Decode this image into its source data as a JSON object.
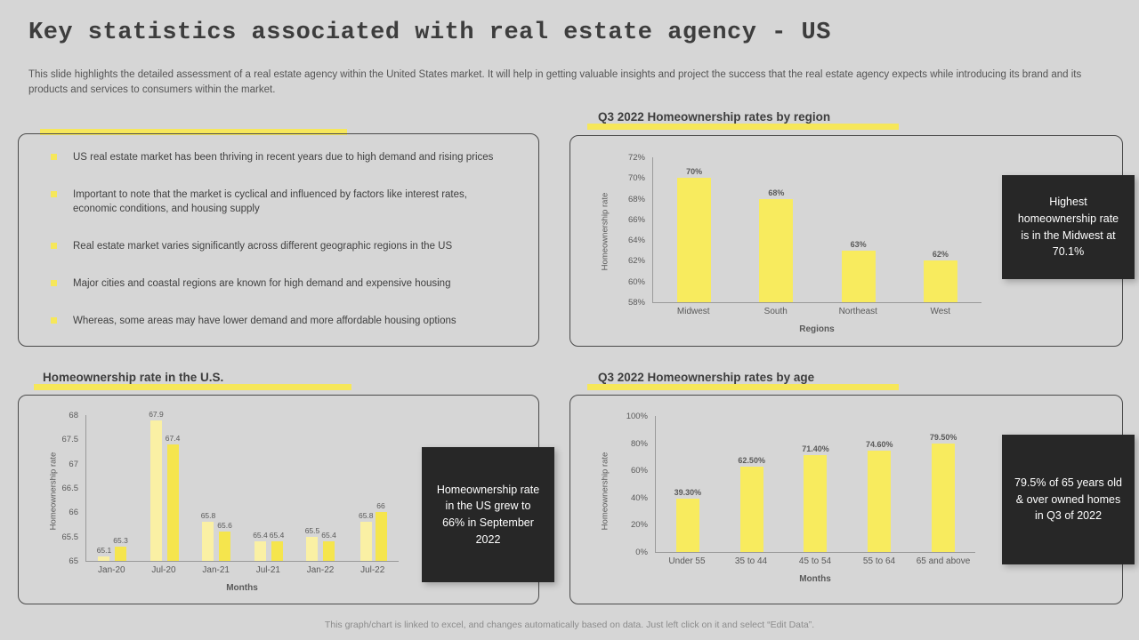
{
  "slide": {
    "title": "Key statistics associated with real estate agency - US",
    "description": "This slide highlights the detailed assessment of a real estate agency within the United States market. It will help in getting valuable insights and project the success that the real estate agency expects while introducing its brand and its products and services to consumers within the market.",
    "footer": "This graph/chart is linked to excel, and changes automatically based on data. Just left click on it and select “Edit Data”."
  },
  "bullets": [
    "US real estate market has been thriving in recent years due to high demand and rising prices",
    "Important to note that the market is cyclical and influenced by factors like interest rates, economic conditions, and housing supply",
    "Real estate market varies significantly across different geographic regions in the US",
    "Major cities and coastal regions are known for high demand and expensive housing",
    "Whereas, some areas may have lower demand and more affordable housing options"
  ],
  "colors": {
    "background": "#d6d6d6",
    "accent_yellow": "#f6e75a",
    "pale_yellow": "#faf0a4",
    "dark_callout": "#272727",
    "text_dark": "#404040",
    "text_muted": "#595959"
  },
  "chart_data": [
    {
      "type": "bar",
      "title": "Q3 2022 Homeownership rates by region",
      "categories": [
        "Midwest",
        "South",
        "Northeast",
        "West"
      ],
      "values": [
        70,
        68,
        63,
        62
      ],
      "labels": [
        "70%",
        "68%",
        "63%",
        "62%"
      ],
      "xlabel": "Regions",
      "ylabel": "Homeownership rate",
      "ylim": [
        58,
        72
      ],
      "yticks": [
        "72%",
        "70%",
        "68%",
        "66%",
        "64%",
        "62%",
        "60%",
        "58%"
      ],
      "grid": false,
      "legend": false,
      "callout": "Highest homeownership rate is in the Midwest at 70.1%"
    },
    {
      "type": "bar",
      "title": "Homeownership rate in the U.S.",
      "categories": [
        "Jan-20",
        "Jul-20",
        "Jan-21",
        "Jul-21",
        "Jan-22",
        "Jul-22"
      ],
      "series": [
        {
          "name": "series1",
          "values": [
            65.1,
            67.9,
            65.8,
            65.4,
            65.5,
            65.8
          ]
        },
        {
          "name": "series2",
          "values": [
            65.3,
            67.4,
            65.6,
            65.4,
            65.4,
            66
          ]
        }
      ],
      "labels": [
        [
          "65.1",
          "65.3"
        ],
        [
          "67.9",
          "67.4"
        ],
        [
          "65.8",
          "65.6"
        ],
        [
          "65.4",
          "65.4"
        ],
        [
          "65.5",
          "65.4"
        ],
        [
          "65.8",
          "66"
        ]
      ],
      "xlabel": "Months",
      "ylabel": "Homeownership rate",
      "ylim": [
        65,
        68
      ],
      "yticks": [
        "68",
        "67.5",
        "67",
        "66.5",
        "66",
        "65.5",
        "65"
      ],
      "grid": false,
      "legend": false,
      "callout": "Homeownership rate in the US grew to 66% in September 2022"
    },
    {
      "type": "bar",
      "title": "Q3 2022 Homeownership rates by age",
      "categories": [
        "Under 55",
        "35 to 44",
        "45 to 54",
        "55 to 64",
        "65 and above"
      ],
      "values": [
        39.3,
        62.5,
        71.4,
        74.6,
        79.5
      ],
      "labels": [
        "39.30%",
        "62.50%",
        "71.40%",
        "74.60%",
        "79.50%"
      ],
      "xlabel": "Months",
      "ylabel": "Homeownership rate",
      "ylim": [
        0,
        100
      ],
      "yticks": [
        "100%",
        "80%",
        "60%",
        "40%",
        "20%",
        "0%"
      ],
      "grid": false,
      "legend": false,
      "callout": "79.5% of 65 years old & over owned homes in Q3 of 2022"
    }
  ]
}
